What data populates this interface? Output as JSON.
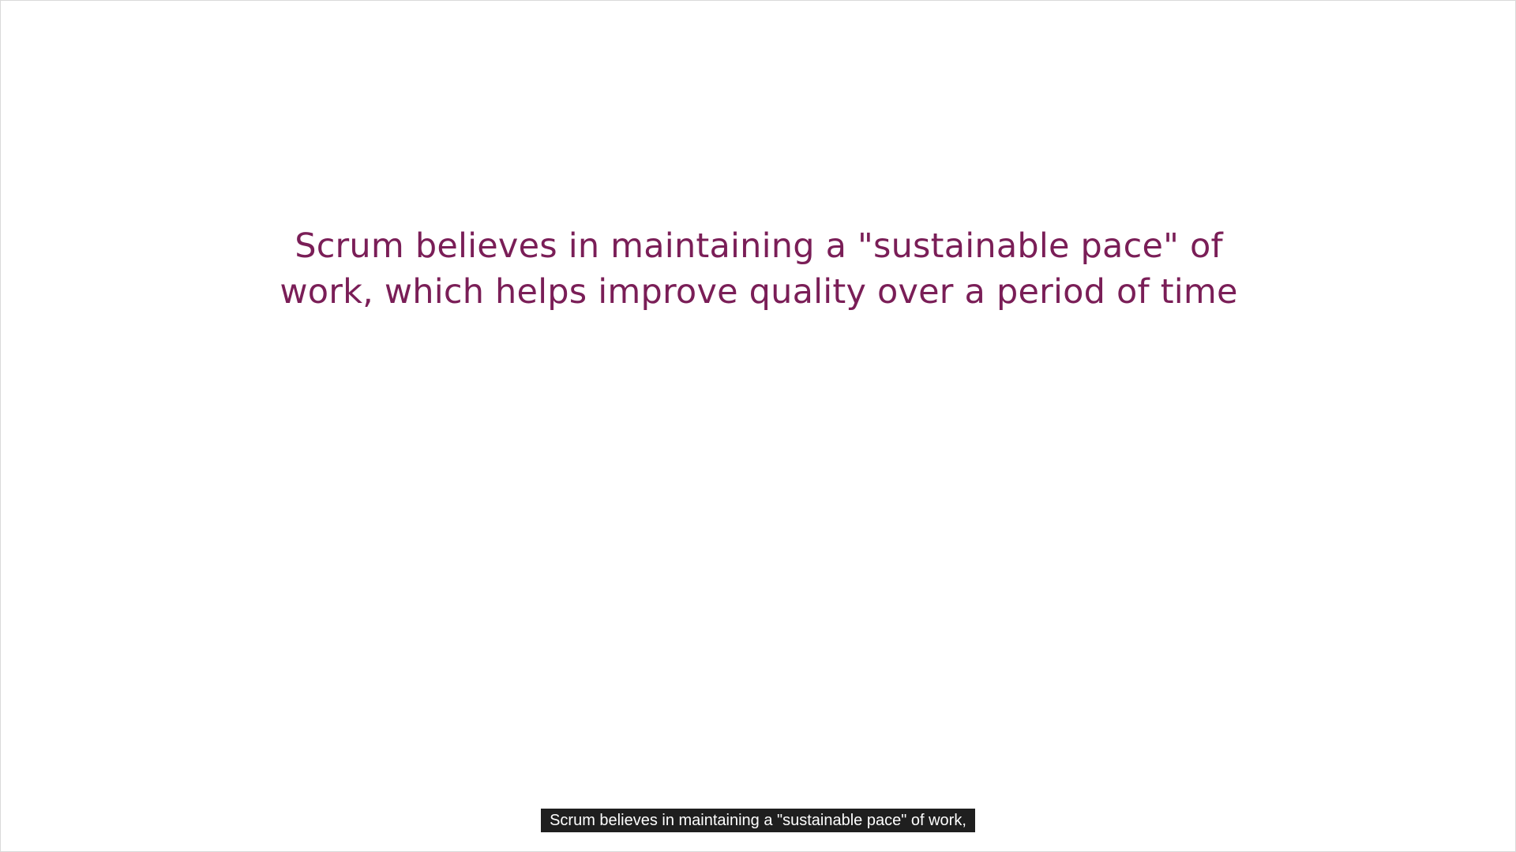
{
  "slide": {
    "heading": "Scrum believes in maintaining a \"sustainable pace\" of work, which helps improve quality over a period of time"
  },
  "subtitle": {
    "text": "Scrum believes in maintaining a \"sustainable pace\" of work,"
  },
  "colors": {
    "heading": "#7a1e57",
    "background": "#ffffff",
    "caption_background": "#1f1f1f",
    "caption_text": "#ffffff"
  }
}
